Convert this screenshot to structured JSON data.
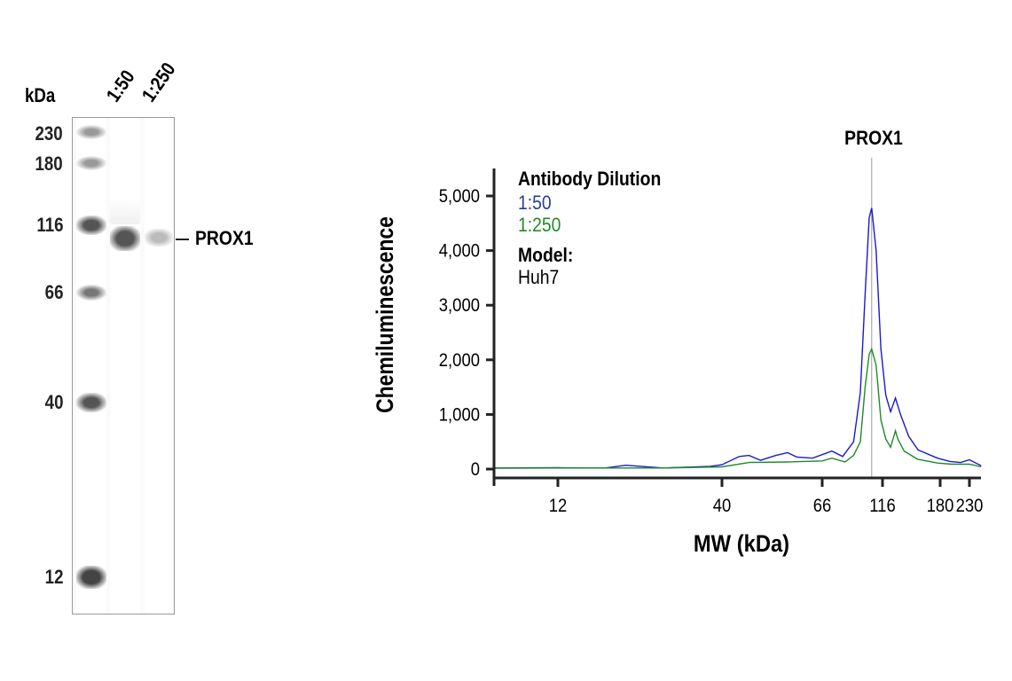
{
  "blot": {
    "unit_label": "kDa",
    "lanes": [
      "1:50",
      "1:250"
    ],
    "markers": [
      "230",
      "180",
      "116",
      "66",
      "40",
      "12"
    ],
    "band_label": "PROX1"
  },
  "chart_data": {
    "type": "line",
    "title": "",
    "annotation": "PROX1",
    "annotation_x": 107,
    "xlabel": "MW (kDa)",
    "ylabel": "Chemiluminescence",
    "x_ticks": [
      "12",
      "40",
      "66",
      "116",
      "180",
      "230"
    ],
    "y_ticks": [
      "0",
      "1,000",
      "2,000",
      "3,000",
      "4,000",
      "5,000"
    ],
    "ylim": [
      0,
      5300
    ],
    "legend": {
      "heading": "Antibody Dilution",
      "model_heading": "Model:",
      "model": "Huh7",
      "placement": "top-left"
    },
    "series": [
      {
        "name": "1:50",
        "color": "#1a1acc",
        "x": [
          5,
          12,
          20,
          23.6,
          30,
          38,
          40,
          44.5,
          47,
          50,
          54,
          57,
          59.4,
          63.5,
          74,
          83,
          92,
          97.6,
          101.6,
          105,
          107,
          110.7,
          114.7,
          119.6,
          125,
          130.4,
          136,
          145,
          155.5,
          177,
          197,
          215,
          230,
          250
        ],
        "y": [
          20,
          25,
          20,
          70,
          20,
          50,
          80,
          230,
          250,
          160,
          250,
          300,
          220,
          200,
          330,
          230,
          500,
          1400,
          3200,
          4600,
          4780,
          4000,
          2200,
          1350,
          1050,
          1300,
          1000,
          600,
          350,
          200,
          140,
          120,
          170,
          60
        ]
      },
      {
        "name": "1:250",
        "color": "#1f8a2a",
        "x": [
          5,
          12,
          30,
          40,
          47,
          57,
          66,
          74,
          85,
          92,
          97.6,
          101.6,
          105,
          107,
          110.7,
          114.7,
          119.6,
          125,
          130.4,
          133,
          140,
          155,
          177,
          200,
          230,
          250
        ],
        "y": [
          15,
          20,
          20,
          40,
          120,
          130,
          150,
          200,
          130,
          250,
          500,
          1500,
          2100,
          2200,
          1900,
          900,
          550,
          400,
          700,
          550,
          330,
          180,
          110,
          90,
          90,
          40
        ]
      }
    ]
  }
}
